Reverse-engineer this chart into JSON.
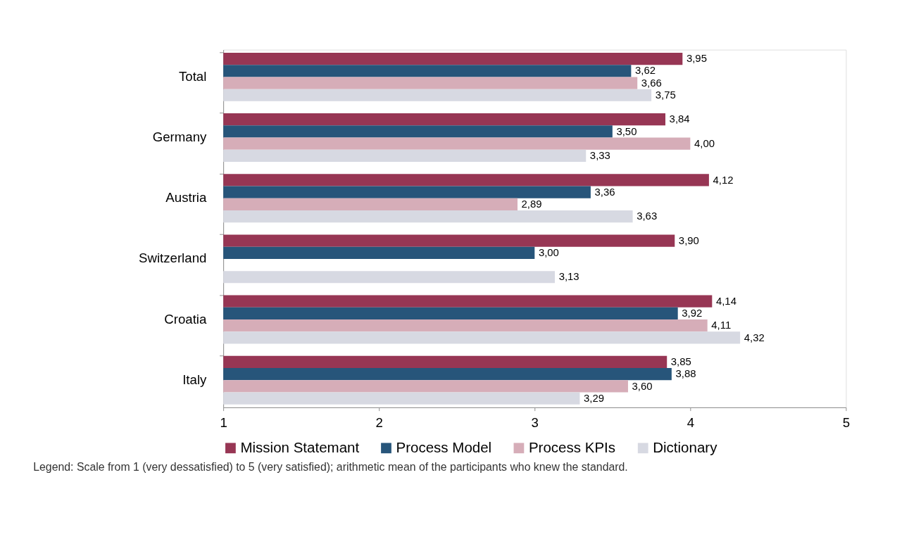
{
  "chart_data": {
    "type": "bar",
    "orientation": "horizontal",
    "categories": [
      "Total",
      "Germany",
      "Austria",
      "Switzerland",
      "Croatia",
      "Italy"
    ],
    "series": [
      {
        "name": "Mission Statemant",
        "color": "#973654",
        "values": [
          3.95,
          3.84,
          4.12,
          3.9,
          4.14,
          3.85
        ],
        "value_labels": [
          "3,95",
          "3,84",
          "4,12",
          "3,90",
          "4,14",
          "3,85"
        ]
      },
      {
        "name": "Process Model",
        "color": "#27557a",
        "values": [
          3.62,
          3.5,
          3.36,
          3.0,
          3.92,
          3.88
        ],
        "value_labels": [
          "3,62",
          "3,50",
          "3,36",
          "3,00",
          "3,92",
          "3,88"
        ]
      },
      {
        "name": "Process KPIs",
        "color": "#d6adb8",
        "values": [
          3.66,
          4.0,
          2.89,
          null,
          4.11,
          3.6
        ],
        "value_labels": [
          "3,66",
          "4,00",
          "2,89",
          null,
          "4,11",
          "3,60"
        ]
      },
      {
        "name": "Dictionary",
        "color": "#d7d9e2",
        "values": [
          3.75,
          3.33,
          3.63,
          3.13,
          4.32,
          3.29
        ],
        "value_labels": [
          "3,75",
          "3,33",
          "3,63",
          "3,13",
          "4,32",
          "3,29"
        ]
      }
    ],
    "xlim": [
      1,
      5
    ],
    "xticks": [
      1,
      2,
      3,
      4,
      5
    ],
    "grid": false,
    "legend": "bottom",
    "annotations": [
      "Legend: Scale from 1 (very dessatisfied) to 5 (very satisfied); arithmetic mean of the participants who knew the standard."
    ]
  }
}
